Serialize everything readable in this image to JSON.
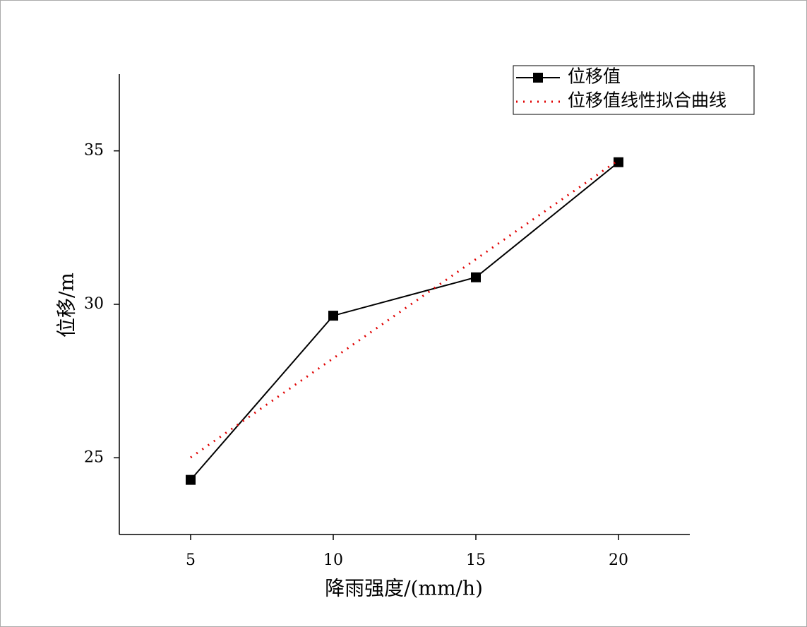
{
  "chart_data": {
    "type": "line",
    "x_label": "降雨强度/(mm/h)",
    "y_label": "位移/m",
    "x": [
      5,
      10,
      15,
      20
    ],
    "series": [
      {
        "name": "位移值",
        "color": "#000000",
        "style": "solid-square",
        "values": [
          24.28,
          29.63,
          30.88,
          34.63
        ]
      },
      {
        "name": "位移值线性拟合曲线",
        "color": "#e00000",
        "style": "dotted",
        "values": [
          25.01,
          28.24,
          31.47,
          34.7
        ]
      }
    ],
    "xlim": [
      2.5,
      22.5
    ],
    "xticks": [
      5,
      10,
      15,
      20
    ],
    "ylim": [
      22.5,
      37.5
    ],
    "yticks": [
      25,
      30,
      35
    ],
    "legend": "top-right"
  }
}
